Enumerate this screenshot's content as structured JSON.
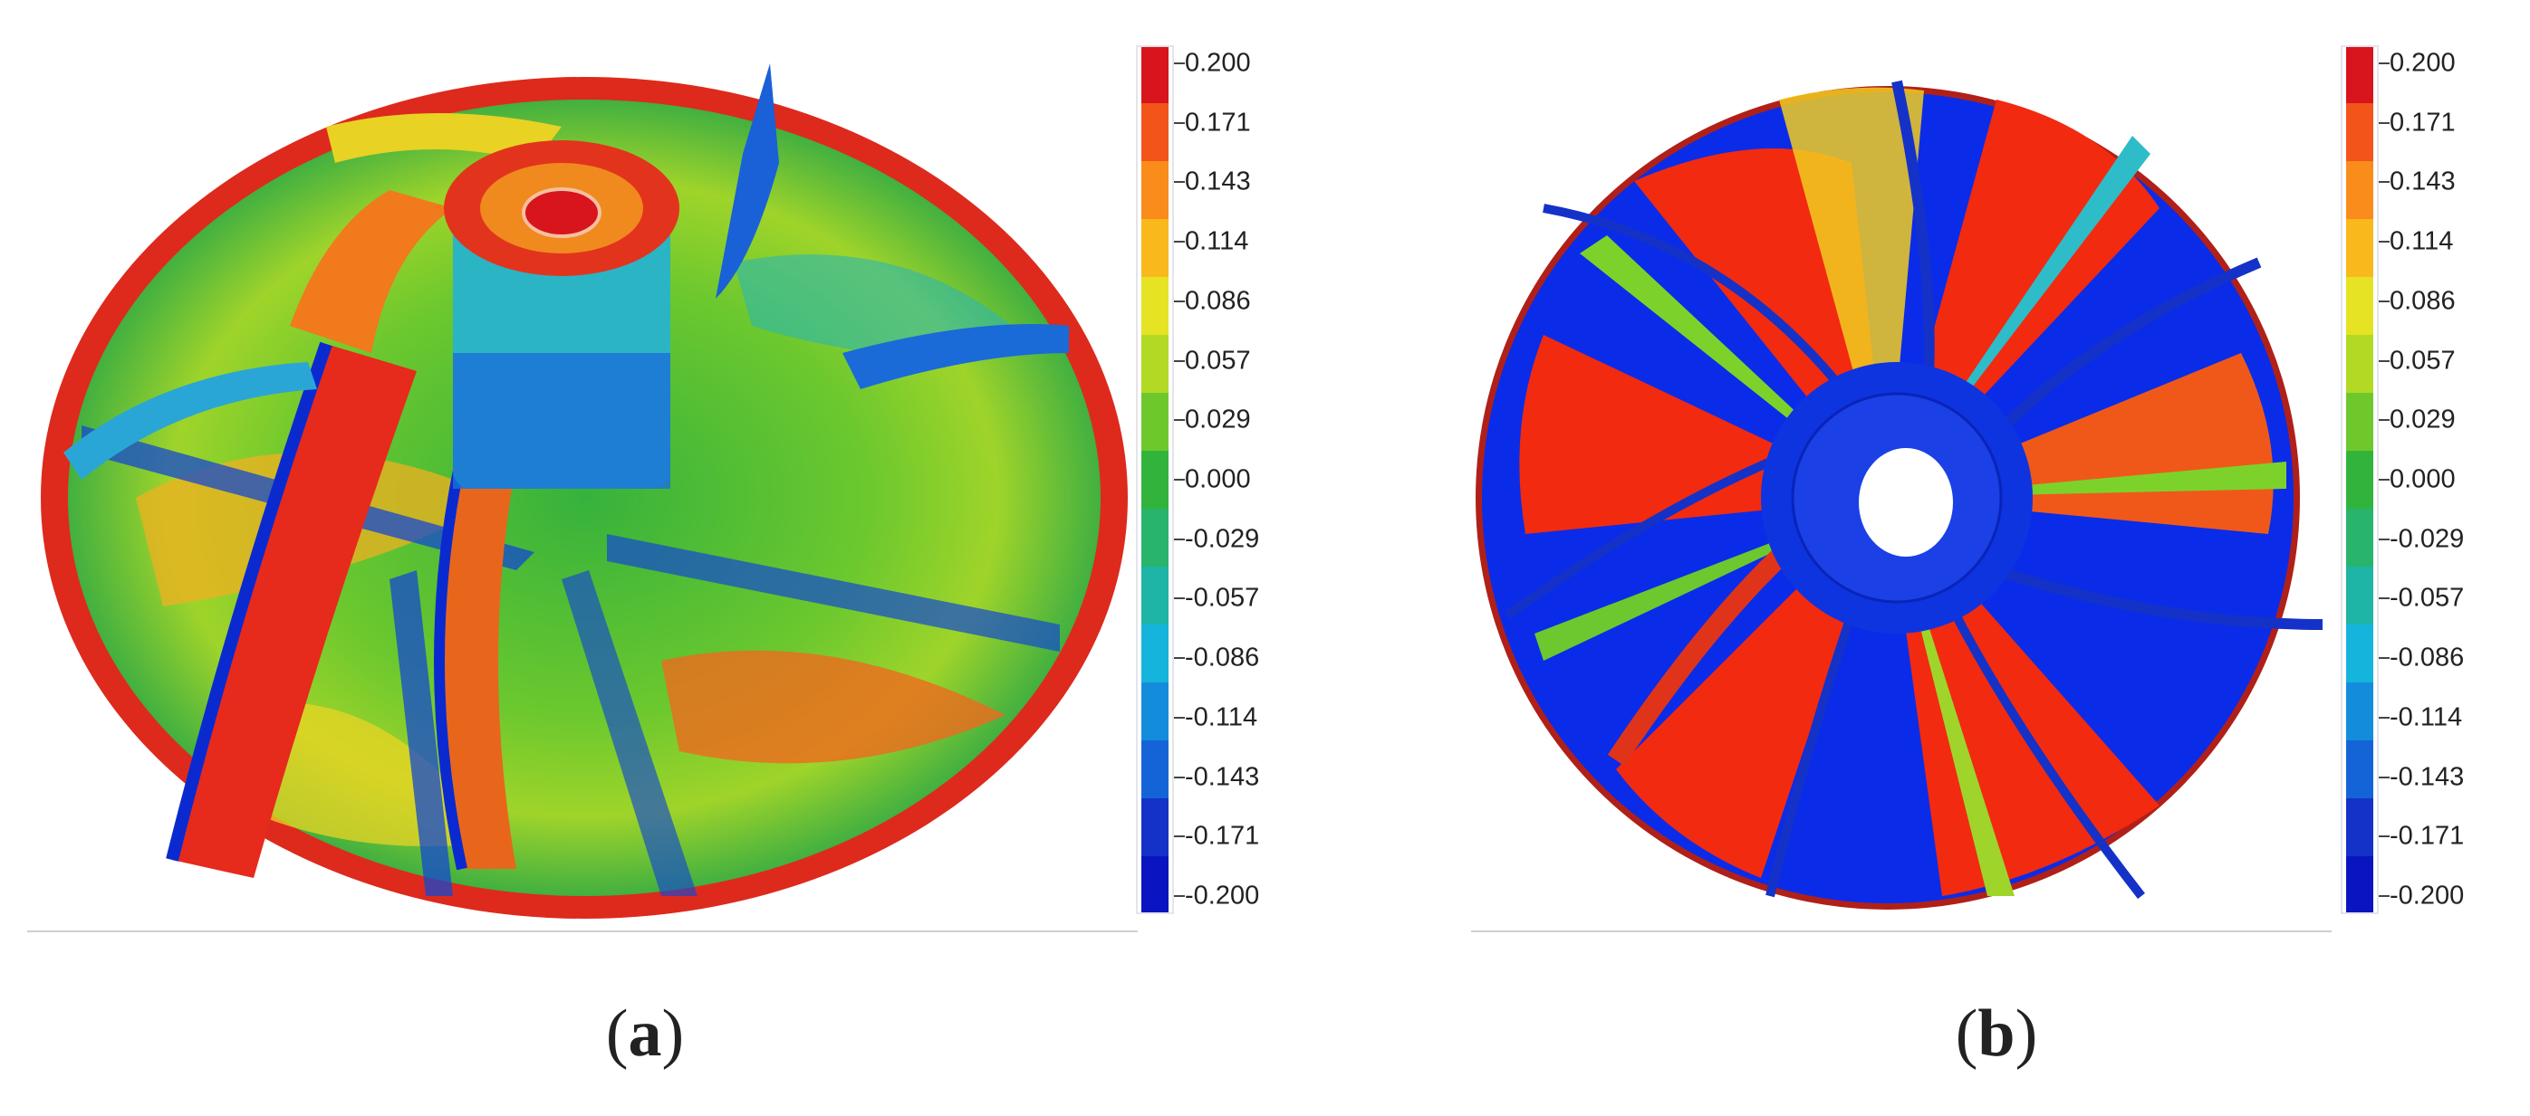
{
  "panels": [
    {
      "id": "a",
      "label_open": "(",
      "label_letter": "a",
      "label_close": ")"
    },
    {
      "id": "b",
      "label_open": "(",
      "label_letter": "b",
      "label_close": ")"
    }
  ],
  "colorbar": {
    "ticks": [
      "0.200",
      "0.171",
      "0.143",
      "0.114",
      "0.086",
      "0.057",
      "0.029",
      "0.000",
      "-0.029",
      "-0.057",
      "-0.086",
      "-0.114",
      "-0.143",
      "-0.171",
      "-0.200"
    ],
    "colors": [
      "#d8141c",
      "#f2541a",
      "#f98c1a",
      "#f9b81c",
      "#e6e224",
      "#b2da24",
      "#6ec82c",
      "#32b43c",
      "#28b46c",
      "#1eb4a6",
      "#14b4dc",
      "#148cdc",
      "#1464d8",
      "#1432c8",
      "#0a14c0"
    ]
  }
}
